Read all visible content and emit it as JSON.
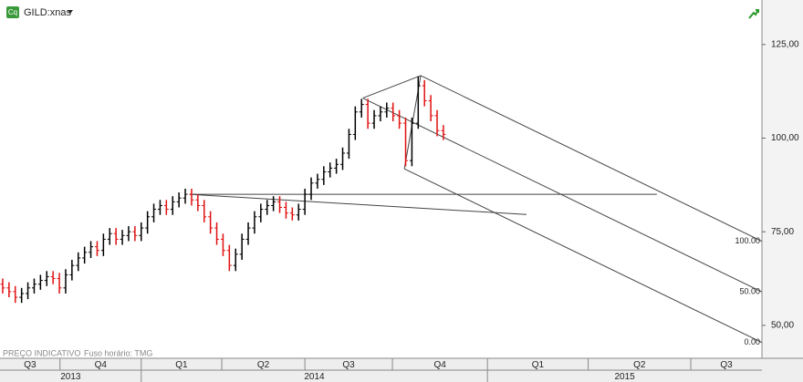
{
  "chart_data": {
    "type": "ohlc",
    "symbol": "GILD:xnas",
    "icon": "Cq",
    "footer": "PREÇO INDICATIVO",
    "timezone": "Fuso horário: TMG",
    "x": [
      0,
      1,
      2,
      3,
      4,
      5,
      6,
      7,
      8,
      9,
      10,
      11,
      12,
      13,
      14,
      15,
      16,
      17,
      18,
      19,
      20,
      21,
      22,
      23,
      24,
      25,
      26,
      27,
      28,
      29,
      30,
      31,
      32,
      33,
      34,
      35,
      36,
      37,
      38,
      39,
      40,
      41,
      42,
      43,
      44,
      45,
      46,
      47,
      48,
      49,
      50,
      51,
      52,
      53,
      54,
      55,
      56,
      57,
      58,
      59,
      60,
      61,
      62,
      63,
      64,
      65,
      66,
      67,
      68,
      69,
      70
    ],
    "open": [
      61,
      60,
      59,
      57.5,
      58.5,
      60,
      61,
      62,
      63,
      62.5,
      60,
      63.5,
      66,
      68,
      69.5,
      71,
      70,
      73,
      74.5,
      73,
      74,
      75,
      74,
      76,
      79,
      81,
      82,
      81,
      83,
      84,
      85,
      83.5,
      82,
      79,
      76,
      73,
      70,
      66,
      69,
      73,
      76,
      79,
      81,
      82,
      83,
      81.5,
      80,
      79.5,
      81,
      85,
      88,
      89,
      91,
      92,
      93,
      96,
      101,
      107,
      109,
      104,
      106,
      107,
      108,
      106,
      104,
      94,
      104,
      114,
      110,
      106,
      102
    ],
    "high": [
      62.5,
      61.5,
      60.5,
      60,
      61.5,
      62.5,
      63.5,
      64.5,
      64.5,
      64,
      65,
      67.5,
      69.5,
      71,
      72.5,
      72.5,
      74.5,
      76,
      76,
      75.5,
      76.5,
      76.5,
      77.5,
      80.5,
      82.5,
      83.5,
      83.5,
      84.5,
      85.5,
      86.5,
      86.5,
      85,
      83.5,
      80.5,
      77.5,
      74.5,
      71.5,
      70.5,
      74.5,
      77.5,
      80.5,
      82.5,
      83.5,
      84.5,
      84.5,
      83,
      81.5,
      82.5,
      86.5,
      89.5,
      90.5,
      92.5,
      93.5,
      94.5,
      97.5,
      102.5,
      108.5,
      110.5,
      110.5,
      107.5,
      108.5,
      109.5,
      109.5,
      107.5,
      105.5,
      105.5,
      116.5,
      115.5,
      111.5,
      107.5,
      103.5
    ],
    "low": [
      58.5,
      57.5,
      56,
      56,
      57,
      58.5,
      59.5,
      60.5,
      61,
      58.5,
      58.5,
      62,
      64.5,
      66.5,
      68,
      68.5,
      68.5,
      71.5,
      71.5,
      71.5,
      72.5,
      72.5,
      72.5,
      74.5,
      77.5,
      79.5,
      79.5,
      79.5,
      81.5,
      82.5,
      82,
      80.5,
      77.5,
      74.5,
      71.5,
      68.5,
      64.5,
      64.5,
      67.5,
      71.5,
      74.5,
      77.5,
      79.5,
      80.5,
      80,
      78.5,
      78,
      78,
      79.5,
      83.5,
      86.5,
      87.5,
      89.5,
      90.5,
      91.5,
      94.5,
      99.5,
      105.5,
      102.5,
      102.5,
      104.5,
      105.5,
      104.5,
      102.5,
      92.5,
      92.5,
      102.5,
      108.5,
      104.5,
      100.5,
      99.5
    ],
    "close": [
      60,
      59,
      57.5,
      58.5,
      60,
      61,
      62,
      63,
      62.5,
      60,
      63.5,
      66,
      68,
      69.5,
      71,
      70,
      73,
      74.5,
      73,
      74,
      75,
      74,
      76,
      79,
      81,
      82,
      81,
      83,
      84,
      85,
      83.5,
      82,
      79,
      76,
      73,
      70,
      66,
      69,
      73,
      76,
      79,
      81,
      82,
      83,
      81.5,
      80,
      79.5,
      81,
      85,
      88,
      89,
      91,
      92,
      93,
      96,
      101,
      107,
      109,
      104,
      106,
      107,
      108,
      106,
      104,
      94,
      104,
      114,
      110,
      106,
      102,
      101
    ],
    "up_color": "#000000",
    "down_color": "#e01010",
    "xlim": [
      -0.43,
      120.6
    ],
    "ylim": [
      41.2,
      136.9
    ],
    "yticks": [
      {
        "value": 50,
        "label": "50,00"
      },
      {
        "value": 75,
        "label": "75,00"
      },
      {
        "value": 100,
        "label": "100,00"
      },
      {
        "value": 125,
        "label": "125,00"
      }
    ],
    "quarter_labels": [
      "Q3",
      "Q4",
      "Q1",
      "Q2",
      "Q3",
      "Q4",
      "Q1",
      "Q2",
      "Q3"
    ],
    "quarter_edges": [
      -0.43,
      9.1,
      22.0,
      34.8,
      48.0,
      61.9,
      77.0,
      93.0,
      109.3,
      120.6
    ],
    "year_labels": [
      "2013",
      "2014",
      "2015"
    ],
    "year_edges": [
      -0.43,
      22.0,
      77.0,
      120.6
    ],
    "trend_line": [
      [
        29.7,
        85.0
      ],
      [
        83.2,
        79.6
      ]
    ],
    "horizontal_line": [
      [
        29.7,
        85.0
      ],
      [
        103.9,
        85.0
      ]
    ],
    "pitchfork": {
      "points": [
        [
          57.2,
          110.7
        ],
        [
          66.4,
          116.7
        ],
        [
          63.8,
          91.8
        ]
      ],
      "level_labels": [
        "100.00",
        "50.00",
        "0.00"
      ]
    }
  }
}
